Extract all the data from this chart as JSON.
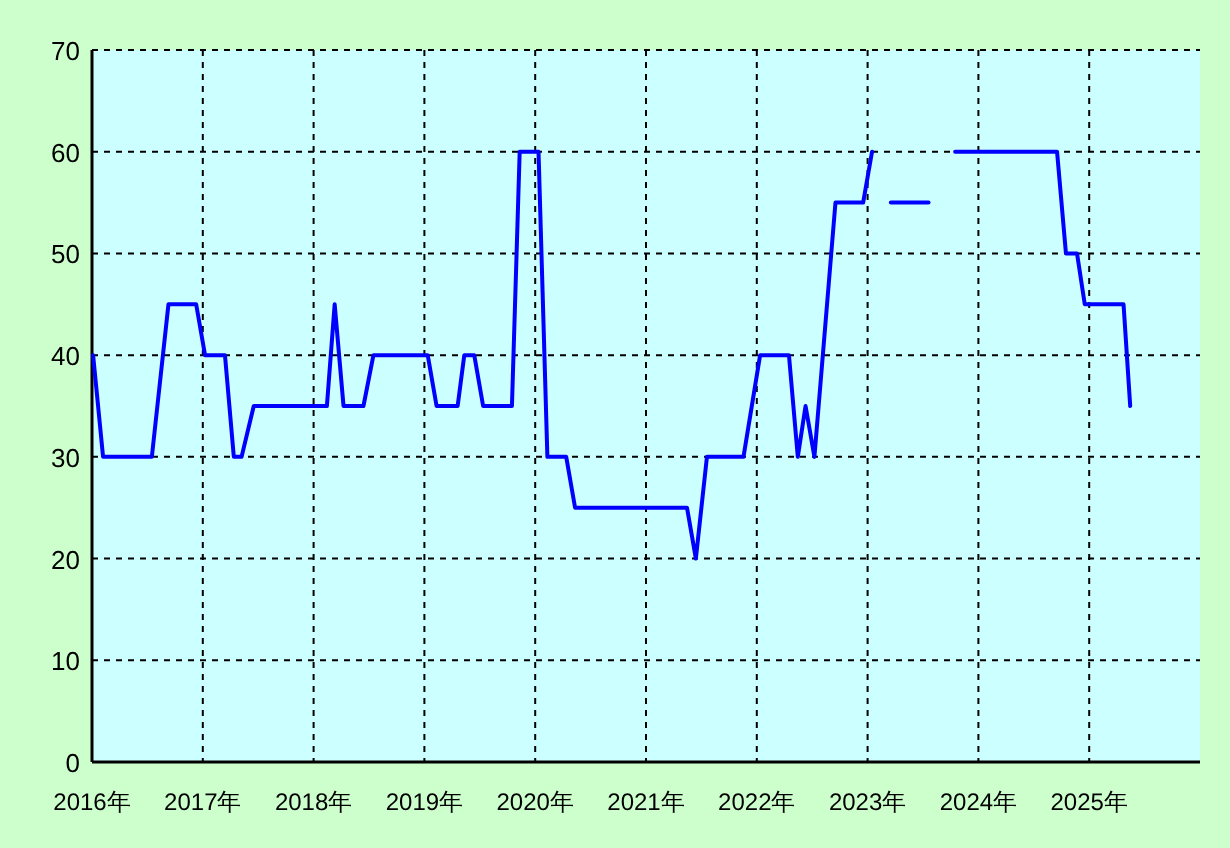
{
  "chart_data": {
    "type": "line",
    "grid": true,
    "series": [
      {
        "color": "#0000ff",
        "x": [
          2016.01,
          2016.1,
          2016.54,
          2016.69,
          2016.94,
          2017.02,
          2017.2,
          2017.28,
          2017.35,
          2017.46,
          2018.12,
          2018.19,
          2018.27,
          2018.45,
          2018.54,
          2019.03,
          2019.11,
          2019.3,
          2019.36,
          2019.45,
          2019.53,
          2019.79,
          2019.86,
          2020.03,
          2020.11,
          2020.28,
          2020.36,
          2021.37,
          2021.45,
          2021.55,
          2021.88,
          2022.03,
          2022.29,
          2022.37,
          2022.44,
          2022.52,
          2022.71,
          2022.96,
          2023.04
        ],
        "values": [
          40,
          30,
          30,
          45,
          45,
          40,
          40,
          30,
          30,
          35,
          35,
          45,
          35,
          35,
          40,
          40,
          35,
          35,
          40,
          40,
          35,
          35,
          60,
          60,
          30,
          30,
          25,
          25,
          20,
          30,
          30,
          40,
          40,
          30,
          35,
          30,
          55,
          55,
          60
        ]
      },
      {
        "color": "#0000ff",
        "x": [
          2023.21,
          2023.55
        ],
        "values": [
          55,
          55
        ]
      },
      {
        "color": "#0000ff",
        "x": [
          2023.79,
          2024.71,
          2024.79,
          2024.89,
          2024.96,
          2025.31,
          2025.37
        ],
        "values": [
          60,
          60,
          50,
          50,
          45,
          45,
          35
        ]
      }
    ],
    "xlim": [
      2016,
      2026
    ],
    "ylim": [
      0,
      70
    ],
    "xticks": [
      {
        "value": 2016,
        "label": "2016年"
      },
      {
        "value": 2017,
        "label": "2017年"
      },
      {
        "value": 2018,
        "label": "2018年"
      },
      {
        "value": 2019,
        "label": "2019年"
      },
      {
        "value": 2020,
        "label": "2020年"
      },
      {
        "value": 2021,
        "label": "2021年"
      },
      {
        "value": 2022,
        "label": "2022年"
      },
      {
        "value": 2023,
        "label": "2023年"
      },
      {
        "value": 2024,
        "label": "2024年"
      },
      {
        "value": 2025,
        "label": "2025年"
      }
    ],
    "yticks": [
      0,
      10,
      20,
      30,
      40,
      50,
      60,
      70
    ]
  }
}
